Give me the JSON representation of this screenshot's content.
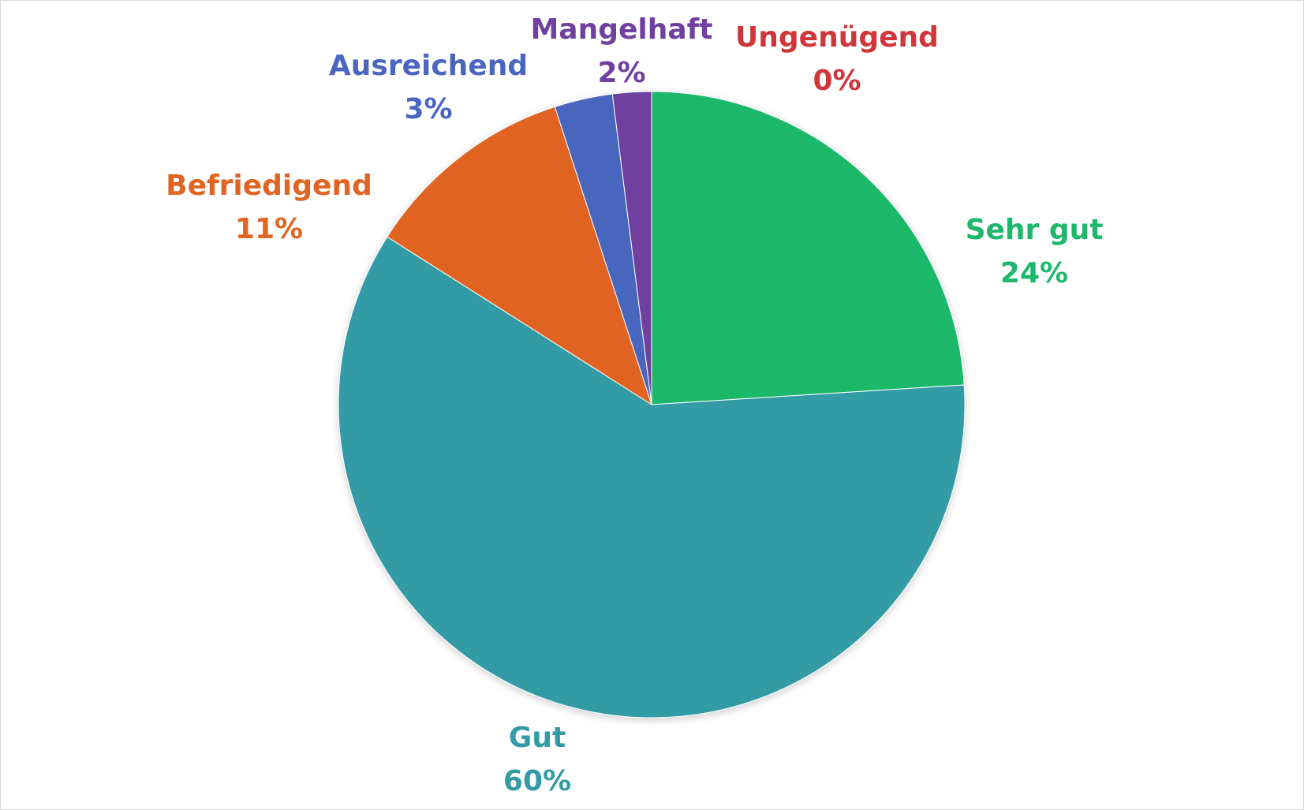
{
  "chart_data": {
    "type": "pie",
    "title": "",
    "slices": [
      {
        "label": "Sehr gut",
        "value": 24,
        "value_label": "24%",
        "color": "#1db86b"
      },
      {
        "label": "Gut",
        "value": 60,
        "value_label": "60%",
        "color": "#339ba5"
      },
      {
        "label": "Befriedigend",
        "value": 11,
        "value_label": "11%",
        "color": "#e06422"
      },
      {
        "label": "Ausreichend",
        "value": 3,
        "value_label": "3%",
        "color": "#4a66bf"
      },
      {
        "label": "Mangelhaft",
        "value": 2,
        "value_label": "2%",
        "color": "#7040a0"
      },
      {
        "label": "Ungenügend",
        "value": 0,
        "value_label": "0%",
        "color": "#d0353a"
      }
    ],
    "start_angle": "12 o'clock",
    "direction": "clockwise",
    "legend": "none",
    "data_labels": "outside"
  }
}
